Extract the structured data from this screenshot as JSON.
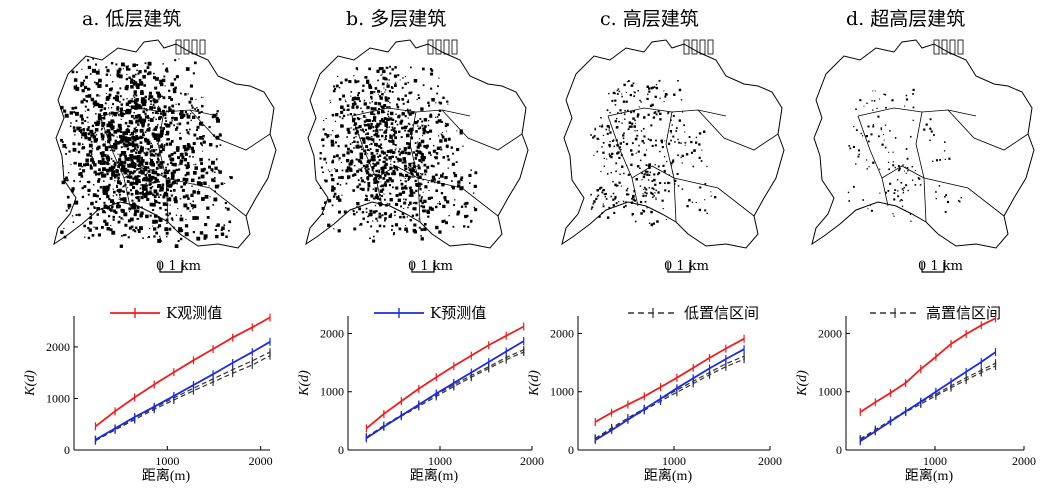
{
  "panels": [
    {
      "title": "a. 低层建筑",
      "scale_label": "0 1 km",
      "density": 1.0
    },
    {
      "title": "b. 多层建筑",
      "scale_label": "0 1 km",
      "density": 0.75
    },
    {
      "title": "c. 高层建筑",
      "scale_label": "0 1 km",
      "density": 0.28
    },
    {
      "title": "d. 超高层建筑",
      "scale_label": "0 1 km",
      "density": 0.1
    }
  ],
  "legend": {
    "observed": "K观测值",
    "predicted": "K预测值",
    "low_ci": "低置信区间",
    "high_ci": "高置信区间"
  },
  "colors": {
    "observed": "#ee1c1c",
    "predicted": "#1c2bdc",
    "ci": "#333333",
    "map_dots": "#000000"
  },
  "chart_data": [
    {
      "type": "line",
      "xlabel": "距离(m)",
      "ylabel": "K(d)",
      "xlim": [
        0,
        2100
      ],
      "ylim": [
        0,
        2600
      ],
      "xticks": [
        1000,
        2000
      ],
      "xtick_labels": [
        "1000",
        "2000"
      ],
      "yticks": [
        0,
        1000,
        2000
      ],
      "ytick_labels": [
        "0",
        "1000",
        "2000"
      ],
      "x": [
        230,
        440,
        650,
        860,
        1070,
        1280,
        1490,
        1700,
        1910,
        2100
      ],
      "series": [
        {
          "name": "K观测值",
          "key": "observed",
          "values": [
            460,
            750,
            1020,
            1270,
            1510,
            1740,
            1960,
            2180,
            2380,
            2570
          ]
        },
        {
          "name": "K预测值",
          "key": "predicted",
          "values": [
            200,
            420,
            640,
            840,
            1050,
            1260,
            1470,
            1690,
            1900,
            2100
          ]
        },
        {
          "name": "低置信区间",
          "key": "low_ci",
          "values": [
            180,
            390,
            590,
            790,
            970,
            1150,
            1320,
            1490,
            1650,
            1830
          ]
        },
        {
          "name": "高置信区间",
          "key": "high_ci",
          "values": [
            200,
            410,
            620,
            820,
            1010,
            1200,
            1380,
            1560,
            1730,
            1900
          ]
        }
      ]
    },
    {
      "type": "line",
      "xlabel": "距离(m)",
      "ylabel": "K(d)",
      "xlim": [
        0,
        2000
      ],
      "ylim": [
        0,
        2300
      ],
      "xticks": [
        1000,
        2000
      ],
      "xtick_labels": [
        "1000",
        "2000"
      ],
      "yticks": [
        0,
        1000,
        2000
      ],
      "ytick_labels": [
        "0",
        "1000",
        "2000"
      ],
      "x": [
        200,
        390,
        580,
        770,
        960,
        1150,
        1340,
        1530,
        1720,
        1910
      ],
      "series": [
        {
          "name": "K观测值",
          "key": "observed",
          "values": [
            370,
            620,
            840,
            1050,
            1250,
            1440,
            1620,
            1800,
            1960,
            2120
          ]
        },
        {
          "name": "K预测值",
          "key": "predicted",
          "values": [
            200,
            400,
            590,
            780,
            970,
            1150,
            1330,
            1510,
            1690,
            1870
          ]
        },
        {
          "name": "低置信区间",
          "key": "low_ci",
          "values": [
            210,
            400,
            580,
            750,
            920,
            1090,
            1250,
            1400,
            1550,
            1680
          ]
        },
        {
          "name": "高置信区间",
          "key": "high_ci",
          "values": [
            220,
            420,
            600,
            780,
            950,
            1120,
            1280,
            1430,
            1590,
            1720
          ]
        }
      ]
    },
    {
      "type": "line",
      "xlabel": "距离(m)",
      "ylabel": "K(d)",
      "xlim": [
        0,
        2000
      ],
      "ylim": [
        0,
        2300
      ],
      "xticks": [
        1000,
        2000
      ],
      "xtick_labels": [
        "1000",
        "2000"
      ],
      "yticks": [
        0,
        1000,
        2000
      ],
      "ytick_labels": [
        "0",
        "1000",
        "2000"
      ],
      "x": [
        180,
        350,
        520,
        690,
        860,
        1030,
        1200,
        1370,
        1540,
        1730
      ],
      "series": [
        {
          "name": "K观测值",
          "key": "observed",
          "values": [
            480,
            640,
            780,
            920,
            1080,
            1240,
            1410,
            1580,
            1740,
            1910
          ]
        },
        {
          "name": "K预测值",
          "key": "predicted",
          "values": [
            170,
            340,
            520,
            700,
            880,
            1060,
            1230,
            1400,
            1560,
            1730
          ]
        },
        {
          "name": "低置信区间",
          "key": "low_ci",
          "values": [
            190,
            360,
            520,
            680,
            840,
            990,
            1140,
            1290,
            1430,
            1560
          ]
        },
        {
          "name": "高置信区间",
          "key": "high_ci",
          "values": [
            200,
            380,
            550,
            710,
            870,
            1030,
            1180,
            1330,
            1480,
            1610
          ]
        }
      ]
    },
    {
      "type": "line",
      "xlabel": "距离(m)",
      "ylabel": "K(d)",
      "xlim": [
        0,
        2000
      ],
      "ylim": [
        0,
        2300
      ],
      "xticks": [
        1000,
        2000
      ],
      "xtick_labels": [
        "1000",
        "2000"
      ],
      "yticks": [
        0,
        1000,
        2000
      ],
      "ytick_labels": [
        "0",
        "1000",
        "2000"
      ],
      "x": [
        160,
        330,
        500,
        670,
        840,
        1010,
        1180,
        1350,
        1520,
        1680
      ],
      "series": [
        {
          "name": "K观测值",
          "key": "observed",
          "values": [
            650,
            820,
            980,
            1150,
            1390,
            1600,
            1820,
            1990,
            2140,
            2260
          ]
        },
        {
          "name": "K预测值",
          "key": "predicted",
          "values": [
            150,
            320,
            490,
            660,
            830,
            1000,
            1170,
            1340,
            1510,
            1680
          ]
        },
        {
          "name": "低置信区间",
          "key": "low_ci",
          "values": [
            170,
            330,
            490,
            650,
            790,
            930,
            1070,
            1200,
            1330,
            1440
          ]
        },
        {
          "name": "高置信区间",
          "key": "high_ci",
          "values": [
            190,
            350,
            510,
            670,
            820,
            960,
            1100,
            1240,
            1370,
            1490
          ]
        }
      ]
    }
  ]
}
